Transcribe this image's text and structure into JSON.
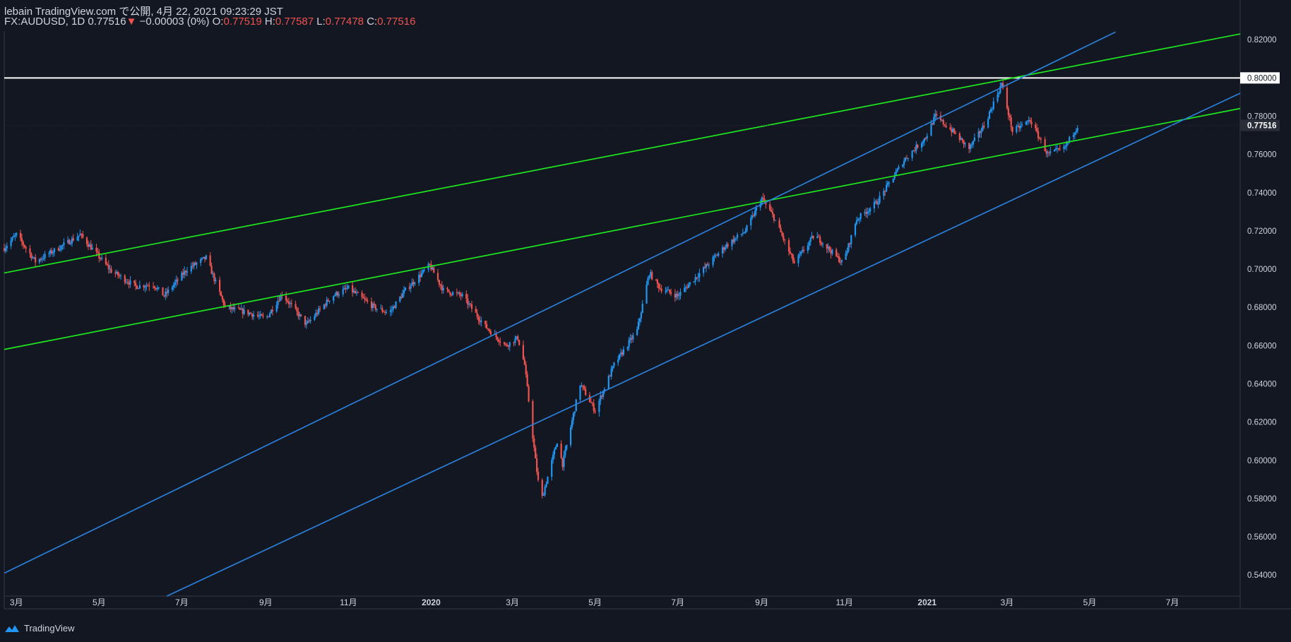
{
  "header": {
    "line1": "lebain TradingView.com で公開, 4月 22, 2021 09:23:29 JST",
    "symbol": "FX:AUDUSD, 1D",
    "last": "0.77516",
    "arrow": "▼",
    "change": "−0.00003 (0%)",
    "o_label": "O:",
    "o_value": "0.77519",
    "h_label": "H:",
    "h_value": "0.77587",
    "l_label": "L:",
    "l_value": "0.77478",
    "c_label": "C:",
    "c_value": "0.77516"
  },
  "footer": {
    "brand": "TradingView",
    "logo_icon": "tradingview-logo-icon"
  },
  "colors": {
    "background": "#131722",
    "up": "#2196f3",
    "down": "#ef5350",
    "green_line": "#1ee61e",
    "blue_line": "#2a7fd8",
    "level_line": "#ffffff",
    "axis_text": "#d1d4dc"
  },
  "chart_data": {
    "type": "candlestick",
    "symbol": "FX:AUDUSD",
    "interval": "1D",
    "y_axis": {
      "range": [
        0.529,
        0.8245
      ],
      "ticks": [
        "0.82000",
        "0.80000",
        "0.78000",
        "0.76000",
        "0.74000",
        "0.72000",
        "0.70000",
        "0.68000",
        "0.66000",
        "0.64000",
        "0.62000",
        "0.60000",
        "0.58000",
        "0.56000",
        "0.54000"
      ],
      "last_price_label": "0.77516",
      "level_label": "0.80000"
    },
    "x_axis": {
      "range": [
        "2019-02-20",
        "2021-08-20"
      ],
      "ticks": [
        {
          "label": "3月",
          "date": "2019-03-01"
        },
        {
          "label": "5月",
          "date": "2019-05-01"
        },
        {
          "label": "7月",
          "date": "2019-07-01"
        },
        {
          "label": "9月",
          "date": "2019-09-01"
        },
        {
          "label": "11月",
          "date": "2019-11-01"
        },
        {
          "label": "2020",
          "date": "2020-01-01",
          "bold": true
        },
        {
          "label": "3月",
          "date": "2020-03-01"
        },
        {
          "label": "5月",
          "date": "2020-05-01"
        },
        {
          "label": "7月",
          "date": "2020-07-01"
        },
        {
          "label": "9月",
          "date": "2020-09-01"
        },
        {
          "label": "11月",
          "date": "2020-11-01"
        },
        {
          "label": "2021",
          "date": "2021-01-01",
          "bold": true
        },
        {
          "label": "3月",
          "date": "2021-03-01"
        },
        {
          "label": "5月",
          "date": "2021-05-01"
        },
        {
          "label": "7月",
          "date": "2021-07-01"
        }
      ]
    },
    "price_path": [
      [
        "2019-02-20",
        0.711
      ],
      [
        "2019-03-01",
        0.718
      ],
      [
        "2019-03-15",
        0.704
      ],
      [
        "2019-04-01",
        0.711
      ],
      [
        "2019-04-17",
        0.718
      ],
      [
        "2019-05-10",
        0.699
      ],
      [
        "2019-05-28",
        0.691
      ],
      [
        "2019-06-10",
        0.692
      ],
      [
        "2019-06-18",
        0.686
      ],
      [
        "2019-07-05",
        0.7
      ],
      [
        "2019-07-19",
        0.706
      ],
      [
        "2019-08-02",
        0.68
      ],
      [
        "2019-08-20",
        0.677
      ],
      [
        "2019-09-01",
        0.674
      ],
      [
        "2019-09-13",
        0.687
      ],
      [
        "2019-10-01",
        0.671
      ],
      [
        "2019-10-20",
        0.686
      ],
      [
        "2019-11-01",
        0.69
      ],
      [
        "2019-11-20",
        0.68
      ],
      [
        "2019-12-01",
        0.677
      ],
      [
        "2019-12-13",
        0.689
      ],
      [
        "2019-12-31",
        0.702
      ],
      [
        "2020-01-10",
        0.689
      ],
      [
        "2020-01-24",
        0.686
      ],
      [
        "2020-02-10",
        0.67
      ],
      [
        "2020-02-25",
        0.66
      ],
      [
        "2020-03-05",
        0.664
      ],
      [
        "2020-03-10",
        0.65
      ],
      [
        "2020-03-18",
        0.6
      ],
      [
        "2020-03-22",
        0.578
      ],
      [
        "2020-04-03",
        0.61
      ],
      [
        "2020-04-07",
        0.598
      ],
      [
        "2020-04-20",
        0.64
      ],
      [
        "2020-05-01",
        0.626
      ],
      [
        "2020-05-15",
        0.65
      ],
      [
        "2020-06-01",
        0.668
      ],
      [
        "2020-06-10",
        0.698
      ],
      [
        "2020-06-18",
        0.69
      ],
      [
        "2020-07-01",
        0.686
      ],
      [
        "2020-07-20",
        0.7
      ],
      [
        "2020-08-05",
        0.712
      ],
      [
        "2020-08-20",
        0.72
      ],
      [
        "2020-09-01",
        0.737
      ],
      [
        "2020-09-10",
        0.727
      ],
      [
        "2020-09-25",
        0.703
      ],
      [
        "2020-10-10",
        0.718
      ],
      [
        "2020-10-31",
        0.703
      ],
      [
        "2020-11-10",
        0.726
      ],
      [
        "2020-11-25",
        0.735
      ],
      [
        "2020-12-15",
        0.757
      ],
      [
        "2020-12-31",
        0.769
      ],
      [
        "2021-01-07",
        0.78
      ],
      [
        "2021-01-20",
        0.772
      ],
      [
        "2021-02-01",
        0.763
      ],
      [
        "2021-02-12",
        0.775
      ],
      [
        "2021-02-25",
        0.797
      ],
      [
        "2021-03-05",
        0.772
      ],
      [
        "2021-03-18",
        0.778
      ],
      [
        "2021-03-31",
        0.76
      ],
      [
        "2021-04-12",
        0.763
      ],
      [
        "2021-04-22",
        0.775
      ]
    ],
    "trendlines": [
      {
        "color": "green",
        "p1": [
          "2019-02-20",
          0.698
        ],
        "p2": [
          "2021-08-20",
          0.823
        ]
      },
      {
        "color": "green",
        "p1": [
          "2019-02-20",
          0.658
        ],
        "p2": [
          "2021-08-20",
          0.784
        ]
      },
      {
        "color": "blue",
        "p1": [
          "2019-02-20",
          0.541
        ],
        "p2": [
          "2021-05-20",
          0.824
        ]
      },
      {
        "color": "blue",
        "p1": [
          "2019-06-20",
          0.529
        ],
        "p2": [
          "2021-08-20",
          0.792
        ]
      }
    ],
    "levels": [
      {
        "value": 0.8,
        "color": "white"
      }
    ]
  }
}
